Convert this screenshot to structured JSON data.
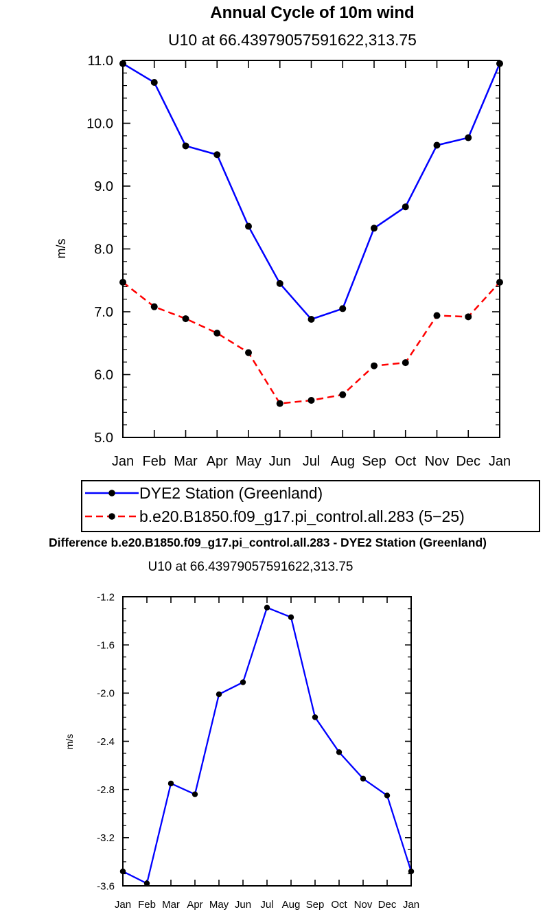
{
  "chart_data": [
    {
      "type": "line",
      "title": "Annual Cycle of 10m wind",
      "subtitle": "U10 at 66.43979057591622,313.75",
      "xlabel": "",
      "ylabel": "m/s",
      "categories": [
        "Jan",
        "Feb",
        "Mar",
        "Apr",
        "May",
        "Jun",
        "Jul",
        "Aug",
        "Sep",
        "Oct",
        "Nov",
        "Dec",
        "Jan"
      ],
      "ylim": [
        5.0,
        11.0
      ],
      "yticks": [
        "5.0",
        "6.0",
        "7.0",
        "8.0",
        "9.0",
        "10.0",
        "11.0"
      ],
      "grid": false,
      "legend": "below",
      "series": [
        {
          "name": "DYE2 Station (Greenland)",
          "color": "#0000ff",
          "dash": "solid",
          "values": [
            10.95,
            10.65,
            9.64,
            9.5,
            8.36,
            7.45,
            6.88,
            7.05,
            8.33,
            8.67,
            9.65,
            9.77,
            10.95
          ]
        },
        {
          "name": "b.e20.B1850.f09_g17.pi_control.all.283 (5−25)",
          "color": "#ff0000",
          "dash": "dashed",
          "values": [
            7.47,
            7.08,
            6.89,
            6.66,
            6.35,
            5.54,
            5.59,
            5.68,
            6.14,
            6.19,
            6.94,
            6.92,
            7.47
          ]
        }
      ]
    },
    {
      "type": "line",
      "title": "Difference b.e20.B1850.f09_g17.pi_control.all.283 - DYE2 Station (Greenland)",
      "subtitle": "U10 at 66.43979057591622,313.75",
      "xlabel": "",
      "ylabel": "m/s",
      "categories": [
        "Jan",
        "Feb",
        "Mar",
        "Apr",
        "May",
        "Jun",
        "Jul",
        "Aug",
        "Sep",
        "Oct",
        "Nov",
        "Dec",
        "Jan"
      ],
      "ylim": [
        -3.6,
        -1.2
      ],
      "yticks": [
        "-3.6",
        "-3.2",
        "-2.8",
        "-2.4",
        "-2.0",
        "-1.6",
        "-1.2"
      ],
      "grid": false,
      "series": [
        {
          "color": "#0000ff",
          "dash": "solid",
          "values": [
            -3.48,
            -3.58,
            -2.75,
            -2.84,
            -2.01,
            -1.91,
            -1.29,
            -1.37,
            -2.2,
            -2.49,
            -2.71,
            -2.85,
            -3.48
          ]
        }
      ]
    }
  ]
}
